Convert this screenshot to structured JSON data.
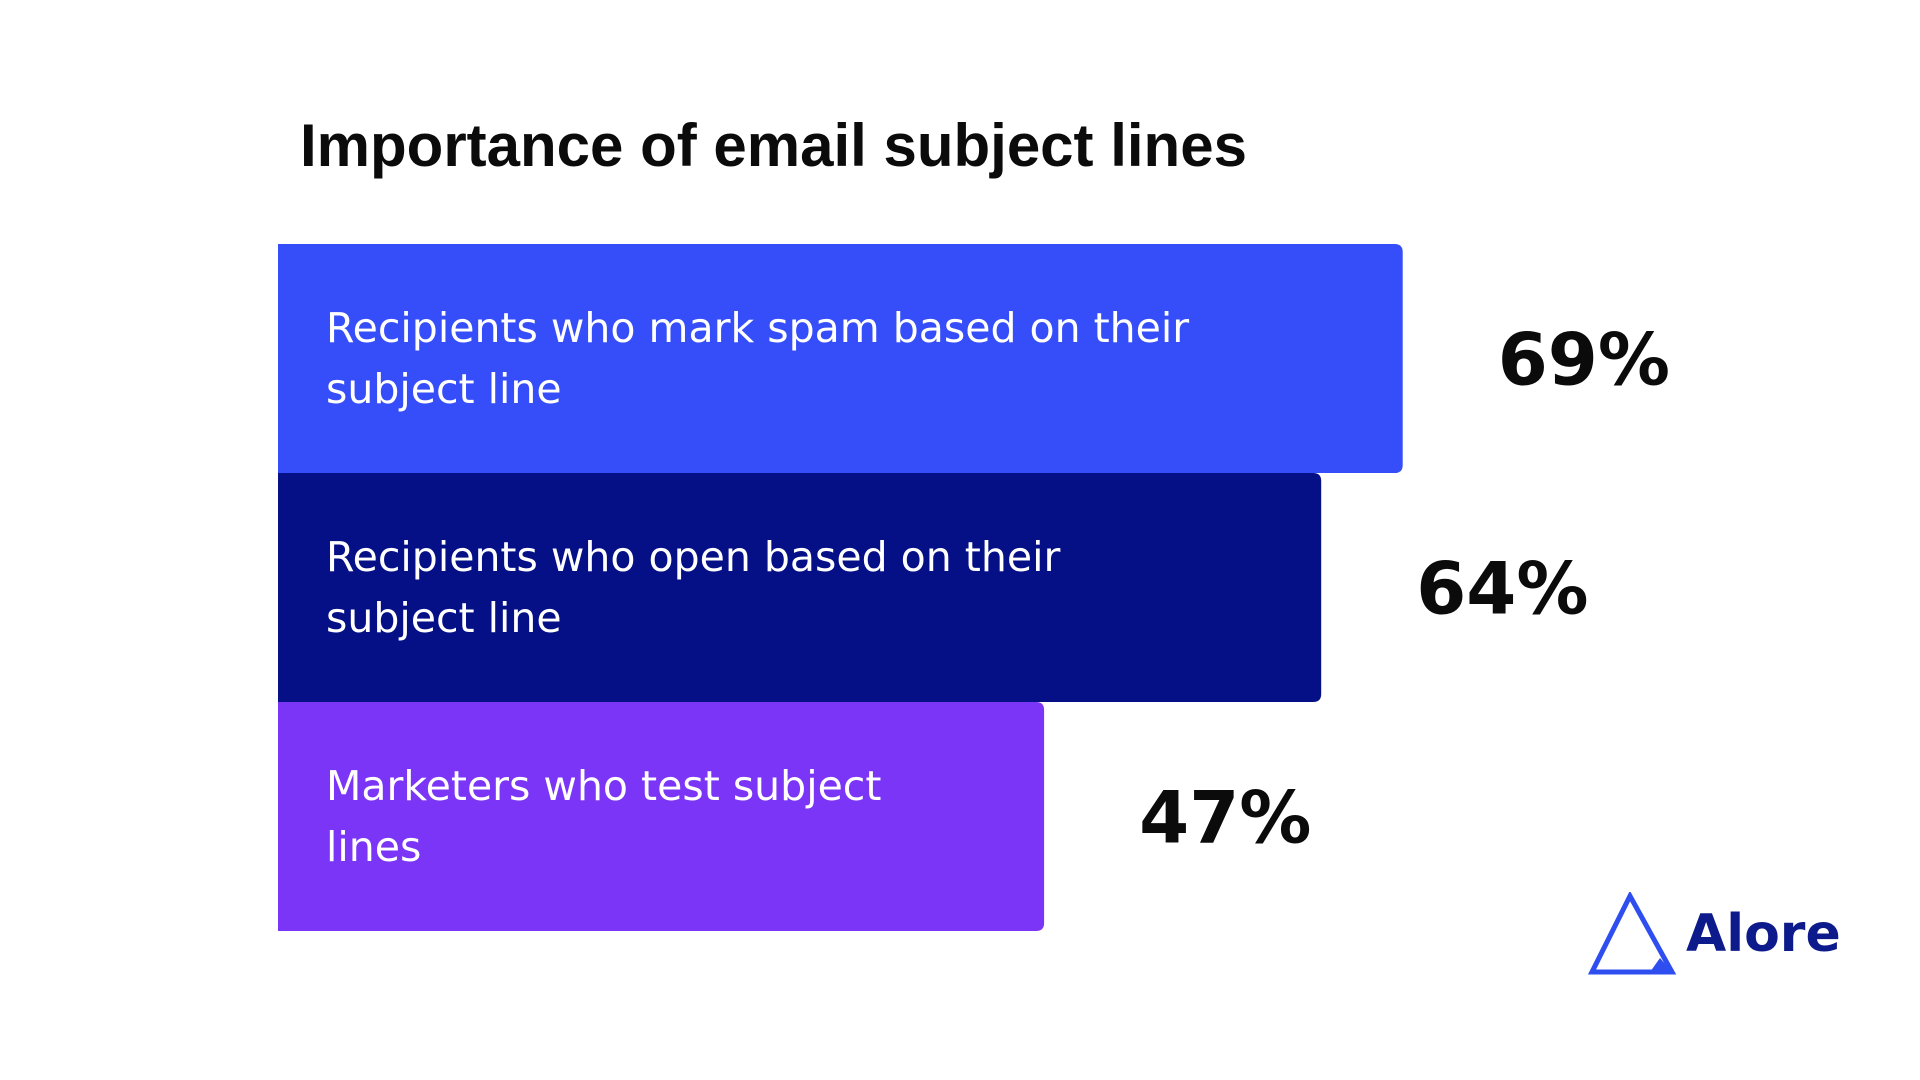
{
  "chart_data": {
    "type": "bar",
    "orientation": "horizontal",
    "title": "Importance of email subject lines",
    "categories": [
      "Recipients who mark spam based on their subject line",
      "Recipients who open based on their subject line",
      "Marketers who test subject lines"
    ],
    "category_lines": [
      [
        "Recipients who mark spam based on their",
        "subject line"
      ],
      [
        "Recipients who open based on their",
        "subject line"
      ],
      [
        "Marketers who test subject",
        "lines"
      ]
    ],
    "values": [
      69,
      64,
      47
    ],
    "value_labels": [
      "69%",
      "64%",
      "47%"
    ],
    "unit": "%",
    "xlim": [
      0,
      100
    ],
    "grid": false,
    "legend": "none",
    "colors": [
      "#364ef9",
      "#050f86",
      "#7b35f7"
    ]
  },
  "brand": {
    "name": "Alore",
    "icon": "triangle-logo-icon",
    "color": "#0d1a8c",
    "icon_color": "#2f4ef0"
  },
  "colors": {
    "background": "#ffffff",
    "text": "#0b0b0b",
    "bar_text": "#ffffff"
  }
}
